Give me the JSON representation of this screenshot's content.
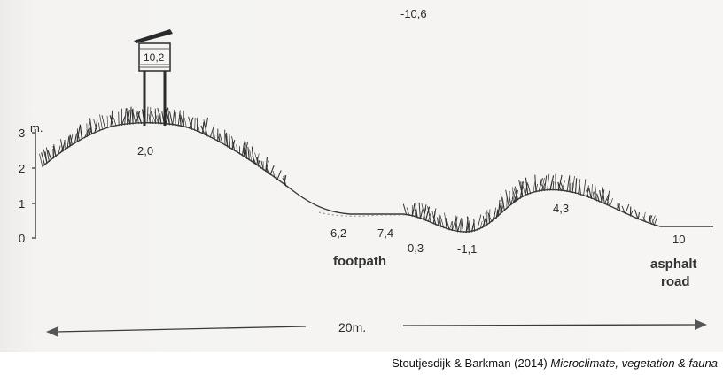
{
  "diagram": {
    "axis": {
      "unit": "m.",
      "ticks": [
        "0",
        "1",
        "2",
        "3"
      ]
    },
    "values": {
      "top": "-10,6",
      "screen": "10,2",
      "hilltop": "2,0",
      "footpath_1": "6,2",
      "footpath_2": "7,4",
      "hollow_1": "0,3",
      "hollow_2": "-1,1",
      "mound": "4,3",
      "road_value": "10"
    },
    "labels": {
      "footpath": "footpath",
      "asphalt_line1": "asphalt",
      "asphalt_line2": "road",
      "distance": "20m."
    },
    "colors": {
      "ink": "#2a2a2a",
      "paper": "#f5f4f2"
    }
  },
  "caption": {
    "authors": "Stoutjesdijk & Barkman (2014)",
    "title": "Microclimate, vegetation & fauna"
  }
}
